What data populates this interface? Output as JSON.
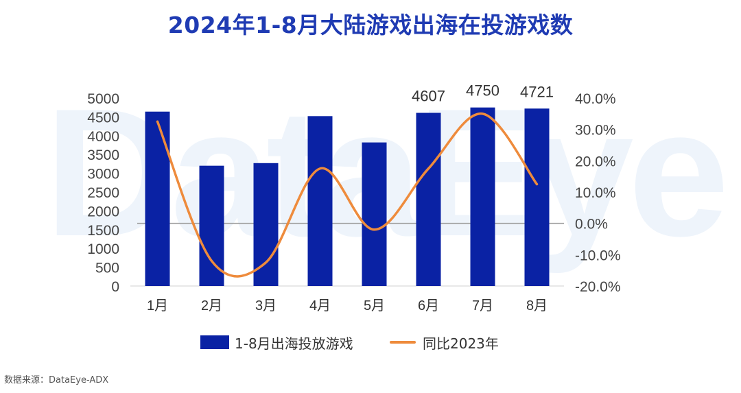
{
  "title": "2024年1-8月大陆游戏出海在投游戏数",
  "watermark": "DataEye",
  "source": "数据来源：DataEye-ADX",
  "colors": {
    "bar": "#0a22a4",
    "line": "#ee8b3c",
    "title": "#1f3bb3",
    "zero_line": "#9a9a9a"
  },
  "chart_data": {
    "type": "bar",
    "categories": [
      "1月",
      "2月",
      "3月",
      "4月",
      "5月",
      "6月",
      "7月",
      "8月"
    ],
    "series": [
      {
        "name": "1-8月出海投放游戏",
        "type": "bar",
        "axis": "left",
        "values": [
          4640,
          3200,
          3270,
          4520,
          3820,
          4607,
          4750,
          4721
        ]
      },
      {
        "name": "同比2023年",
        "type": "line",
        "axis": "right",
        "smooth": true,
        "values": [
          32.5,
          -12.0,
          -12.5,
          17.5,
          -2.0,
          17.5,
          35.0,
          12.5
        ]
      }
    ],
    "data_labels": [
      {
        "index": 5,
        "text": "4607"
      },
      {
        "index": 6,
        "text": "4750"
      },
      {
        "index": 7,
        "text": "4721"
      }
    ],
    "y_left": {
      "ylim": [
        0,
        5000
      ],
      "ticks": [
        "0",
        "500",
        "1000",
        "1500",
        "2000",
        "2500",
        "3000",
        "3500",
        "4000",
        "4500",
        "5000"
      ]
    },
    "y_right": {
      "ylim": [
        -20,
        40
      ],
      "ticks": [
        "-20.0%",
        "-10.0%",
        "0.0%",
        "10.0%",
        "20.0%",
        "30.0%",
        "40.0%"
      ]
    },
    "legend": {
      "position": "bottom"
    },
    "grid": false
  }
}
